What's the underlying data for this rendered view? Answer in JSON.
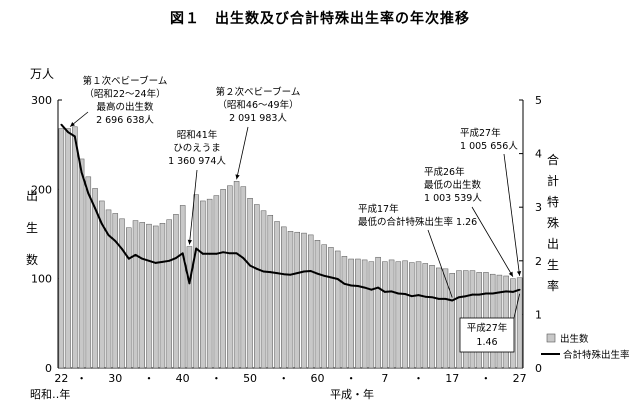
{
  "figure": {
    "title": "図１　出生数及び合計特殊出生率の年次推移"
  },
  "chart_data": {
    "type": "bar+line",
    "title": "図１　出生数及び合計特殊出生率の年次推移",
    "x": [
      "S22",
      "S23",
      "S24",
      "S25",
      "S26",
      "S27",
      "S28",
      "S29",
      "S30",
      "S31",
      "S32",
      "S33",
      "S34",
      "S35",
      "S36",
      "S37",
      "S38",
      "S39",
      "S40",
      "S41",
      "S42",
      "S43",
      "S44",
      "S45",
      "S46",
      "S47",
      "S48",
      "S49",
      "S50",
      "S51",
      "S52",
      "S53",
      "S54",
      "S55",
      "S56",
      "S57",
      "S58",
      "S59",
      "S60",
      "S61",
      "S62",
      "S63",
      "H1",
      "H2",
      "H3",
      "H4",
      "H5",
      "H6",
      "H7",
      "H8",
      "H9",
      "H10",
      "H11",
      "H12",
      "H13",
      "H14",
      "H15",
      "H16",
      "H17",
      "H18",
      "H19",
      "H20",
      "H21",
      "H22",
      "H23",
      "H24",
      "H25",
      "H26",
      "H27"
    ],
    "x_tick_labels": [
      {
        "index": 0,
        "label": "22"
      },
      {
        "index": 3,
        "label": "・"
      },
      {
        "index": 8,
        "label": "30"
      },
      {
        "index": 13,
        "label": "・"
      },
      {
        "index": 18,
        "label": "40"
      },
      {
        "index": 23,
        "label": "・"
      },
      {
        "index": 28,
        "label": "50"
      },
      {
        "index": 33,
        "label": "・"
      },
      {
        "index": 38,
        "label": "60"
      },
      {
        "index": 43,
        "label": "・"
      },
      {
        "index": 48,
        "label": "7"
      },
      {
        "index": 53,
        "label": "・"
      },
      {
        "index": 58,
        "label": "17"
      },
      {
        "index": 63,
        "label": "・"
      },
      {
        "index": 68,
        "label": "27"
      }
    ],
    "xlabel_left": "昭和‥年",
    "xlabel_right": "平成・年",
    "series": [
      {
        "name": "出生数",
        "axis": "left",
        "type": "bar",
        "color": "#c8c8c8",
        "values": [
          268,
          268,
          270,
          234,
          214,
          201,
          187,
          177,
          173,
          167,
          157,
          165,
          163,
          161,
          159,
          162,
          166,
          172,
          182,
          136,
          194,
          187,
          189,
          193,
          200,
          204,
          209,
          203,
          190,
          183,
          176,
          171,
          164,
          158,
          153,
          152,
          151,
          149,
          143,
          138,
          135,
          131,
          125,
          122,
          122,
          121,
          119,
          124,
          119,
          121,
          119,
          120,
          118,
          119,
          117,
          115,
          112,
          111,
          106,
          109,
          109,
          109,
          107,
          107,
          105,
          104,
          103,
          100,
          101
        ]
      },
      {
        "name": "合計特殊出生率",
        "axis": "right",
        "type": "line",
        "color": "#000000",
        "values": [
          4.54,
          4.4,
          4.32,
          3.65,
          3.26,
          2.98,
          2.69,
          2.48,
          2.37,
          2.22,
          2.04,
          2.11,
          2.04,
          2.0,
          1.96,
          1.98,
          2.0,
          2.05,
          2.14,
          1.58,
          2.23,
          2.13,
          2.13,
          2.13,
          2.16,
          2.14,
          2.14,
          2.05,
          1.91,
          1.85,
          1.8,
          1.79,
          1.77,
          1.75,
          1.74,
          1.77,
          1.8,
          1.81,
          1.76,
          1.72,
          1.69,
          1.66,
          1.57,
          1.54,
          1.53,
          1.5,
          1.46,
          1.5,
          1.42,
          1.43,
          1.39,
          1.38,
          1.34,
          1.36,
          1.33,
          1.32,
          1.29,
          1.29,
          1.26,
          1.32,
          1.34,
          1.37,
          1.37,
          1.39,
          1.39,
          1.41,
          1.43,
          1.42,
          1.46
        ]
      }
    ],
    "ylabel_left": {
      "unit": "万人",
      "label": "出生数"
    },
    "ylabel_right": {
      "label": "合計特殊出生率"
    },
    "ylim_left": [
      0,
      300
    ],
    "yticks_left": [
      0,
      100,
      200,
      300
    ],
    "ylim_right": [
      0,
      5
    ],
    "yticks_right": [
      0,
      1,
      2,
      3,
      4,
      5
    ],
    "grid": false,
    "legend_position": "bottom-right",
    "annotations": [
      {
        "index": 1,
        "series": "出生数",
        "lines": [
          "第１次ベビーブーム",
          "（昭和22～24年）",
          "最高の出生数",
          "2 696 638人"
        ]
      },
      {
        "index": 19,
        "series": "出生数",
        "lines": [
          "昭和41年",
          "ひのえうま",
          "1 360 974人"
        ]
      },
      {
        "index": 26,
        "series": "出生数",
        "lines": [
          "第２次ベビーブーム",
          "（昭和46～49年）",
          "2 091 983人"
        ]
      },
      {
        "index": 58,
        "series": "合計特殊出生率",
        "lines": [
          "平成17年",
          "最低の合計特殊出生率 1.26"
        ]
      },
      {
        "index": 67,
        "series": "出生数",
        "lines": [
          "平成26年",
          "最低の出生数",
          "1 003 539人"
        ]
      },
      {
        "index": 68,
        "series": "出生数",
        "lines": [
          "平成27年",
          "1 005 656人"
        ]
      },
      {
        "index": 68,
        "series": "合計特殊出生率",
        "lines": [
          "平成27年",
          "1.46"
        ],
        "boxed": true
      }
    ]
  }
}
